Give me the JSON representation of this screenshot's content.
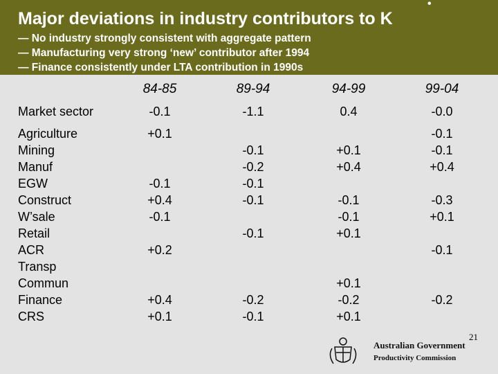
{
  "title": "Major deviations in industry contributors to K",
  "bullets": [
    "— No industry strongly consistent with aggregate pattern",
    "— Manufacturing very strong ‘new’ contributor after 1994",
    "— Finance consistently under LTA contribution in 1990s"
  ],
  "columns": [
    "84-85",
    "89-94",
    "94-99",
    "99-04"
  ],
  "market_sector": {
    "label": "Market sector",
    "values": [
      "-0.1",
      "-1.1",
      "0.4",
      "-0.0"
    ]
  },
  "industries": [
    {
      "label": "Agriculture",
      "values": [
        "+0.1",
        "",
        "",
        "-0.1"
      ]
    },
    {
      "label": "Mining",
      "values": [
        "",
        "-0.1",
        "+0.1",
        "-0.1"
      ]
    },
    {
      "label": "Manuf",
      "values": [
        "",
        "-0.2",
        "+0.4",
        "+0.4"
      ]
    },
    {
      "label": "EGW",
      "values": [
        "-0.1",
        "-0.1",
        "",
        ""
      ]
    },
    {
      "label": "Construct",
      "values": [
        "+0.4",
        "-0.1",
        "-0.1",
        "-0.3"
      ]
    },
    {
      "label": "W’sale",
      "values": [
        "-0.1",
        "",
        "-0.1",
        "+0.1"
      ]
    },
    {
      "label": "Retail",
      "values": [
        "",
        "-0.1",
        "+0.1",
        ""
      ]
    },
    {
      "label": "ACR",
      "values": [
        "+0.2",
        "",
        "",
        "-0.1"
      ]
    },
    {
      "label": "Transp",
      "values": [
        "",
        "",
        "",
        ""
      ]
    },
    {
      "label": "Commun",
      "values": [
        "",
        "",
        "+0.1",
        ""
      ]
    },
    {
      "label": "Finance",
      "values": [
        "+0.4",
        "-0.2",
        "-0.2",
        "-0.2"
      ]
    },
    {
      "label": "CRS",
      "values": [
        "+0.1",
        "-0.1",
        "+0.1",
        ""
      ]
    }
  ],
  "footer": {
    "org_line1": "Australian Government",
    "org_line2": "Productivity Commission",
    "page_number": "21"
  }
}
